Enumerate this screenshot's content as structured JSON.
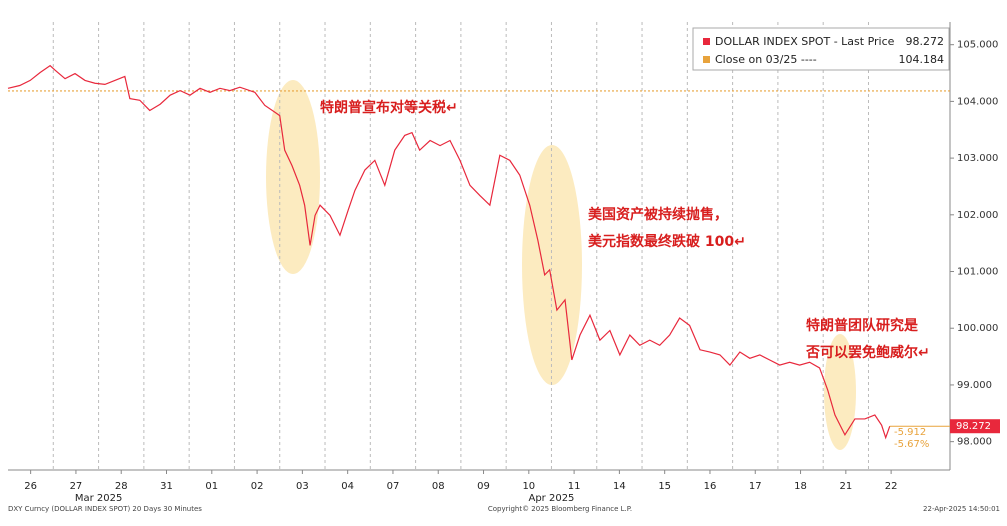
{
  "chart_data": {
    "type": "line",
    "x": [
      0,
      0.26,
      0.49,
      0.71,
      0.93,
      1.04,
      1.26,
      1.48,
      1.7,
      1.92,
      2.14,
      2.36,
      2.58,
      2.69,
      2.91,
      3.13,
      3.36,
      3.58,
      3.8,
      4.02,
      4.24,
      4.46,
      4.68,
      4.9,
      5.12,
      5.45,
      5.67,
      5.89,
      6.0,
      6.11,
      6.27,
      6.44,
      6.55,
      6.67,
      6.78,
      6.89,
      7.11,
      7.33,
      7.51,
      7.66,
      7.88,
      8.1,
      8.32,
      8.54,
      8.76,
      8.92,
      9.09,
      9.32,
      9.54,
      9.76,
      9.98,
      10.2,
      10.42,
      10.64,
      10.86,
      11.08,
      11.3,
      11.52,
      11.7,
      11.85,
      11.96,
      12.12,
      12.3,
      12.45,
      12.63,
      12.85,
      13.07,
      13.29,
      13.51,
      13.73,
      13.95,
      14.17,
      14.39,
      14.61,
      14.83,
      15.05,
      15.28,
      15.5,
      15.72,
      15.94,
      16.16,
      16.38,
      16.6,
      16.82,
      17.04,
      17.26,
      17.48,
      17.7,
      17.92,
      18.1,
      18.26,
      18.48,
      18.7,
      18.92,
      19.14,
      19.29,
      19.38,
      19.47
    ],
    "series": [
      {
        "name": "DOLLAR INDEX SPOT - Last Price",
        "color": "#e8283c",
        "values": [
          104.23,
          104.28,
          104.37,
          104.51,
          104.63,
          104.55,
          104.4,
          104.49,
          104.37,
          104.32,
          104.3,
          104.37,
          104.44,
          104.05,
          104.02,
          103.84,
          103.95,
          104.11,
          104.19,
          104.11,
          104.23,
          104.16,
          104.23,
          104.19,
          104.25,
          104.16,
          103.93,
          103.81,
          103.75,
          103.14,
          102.87,
          102.52,
          102.17,
          101.46,
          101.99,
          102.17,
          101.99,
          101.64,
          102.08,
          102.43,
          102.79,
          102.96,
          102.52,
          103.14,
          103.4,
          103.45,
          103.14,
          103.31,
          103.22,
          103.31,
          102.96,
          102.52,
          102.34,
          102.17,
          103.05,
          102.96,
          102.7,
          102.17,
          101.55,
          100.94,
          101.03,
          100.32,
          100.5,
          99.44,
          99.88,
          100.23,
          99.79,
          99.96,
          99.53,
          99.88,
          99.7,
          99.79,
          99.7,
          99.88,
          100.18,
          100.05,
          99.62,
          99.58,
          99.53,
          99.35,
          99.58,
          99.47,
          99.53,
          99.44,
          99.35,
          99.4,
          99.35,
          99.4,
          99.3,
          98.91,
          98.47,
          98.12,
          98.4,
          98.4,
          98.47,
          98.29,
          98.07,
          98.272
        ]
      }
    ],
    "reference_line": {
      "name": "Close on 03/25 ----",
      "value": 104.184,
      "color": "#e8a33c"
    },
    "change_labels": [
      "-5.912",
      "-5.67%"
    ],
    "xlim": [
      0,
      20.8
    ],
    "xticks": [
      {
        "value": 0.5,
        "label": "26"
      },
      {
        "value": 1.5,
        "label": "27"
      },
      {
        "value": 2.5,
        "label": "28"
      },
      {
        "value": 3.5,
        "label": "31"
      },
      {
        "value": 4.5,
        "label": "01"
      },
      {
        "value": 5.5,
        "label": "02"
      },
      {
        "value": 6.5,
        "label": "03"
      },
      {
        "value": 7.5,
        "label": "04"
      },
      {
        "value": 8.5,
        "label": "07"
      },
      {
        "value": 9.5,
        "label": "08"
      },
      {
        "value": 10.5,
        "label": "09"
      },
      {
        "value": 11.5,
        "label": "10"
      },
      {
        "value": 12.5,
        "label": "11"
      },
      {
        "value": 13.5,
        "label": "14"
      },
      {
        "value": 14.5,
        "label": "15"
      },
      {
        "value": 15.5,
        "label": "16"
      },
      {
        "value": 16.5,
        "label": "17"
      },
      {
        "value": 17.5,
        "label": "18"
      },
      {
        "value": 18.5,
        "label": "21"
      },
      {
        "value": 19.5,
        "label": "22"
      }
    ],
    "months": [
      "Mar 2025",
      "Apr 2025"
    ],
    "ylim": [
      97.5,
      105.4
    ],
    "yticks": [
      {
        "value": 98,
        "label": "98.000"
      },
      {
        "value": 99,
        "label": "99.000"
      },
      {
        "value": 100,
        "label": "100.000"
      },
      {
        "value": 101,
        "label": "101.000"
      },
      {
        "value": 102,
        "label": "102.000"
      },
      {
        "value": 103,
        "label": "103.000"
      },
      {
        "value": 104,
        "label": "104.000"
      },
      {
        "value": 105,
        "label": "105.000"
      }
    ],
    "annotations": [
      [
        "特朗普宣布对等关税↵"
      ],
      [
        "美国资产被持续抛售，",
        "美元指数最终跌破 100↵"
      ],
      [
        "特朗普团队研究是",
        "否可以罢免鲍威尔↵"
      ]
    ],
    "footer": {
      "left": "DXY Curncy (DOLLAR INDEX SPOT) 20 Days 30 Minutes",
      "center": "Copyright© 2025 Bloomberg Finance L.P.",
      "right": "22-Apr-2025 14:50:01"
    }
  }
}
